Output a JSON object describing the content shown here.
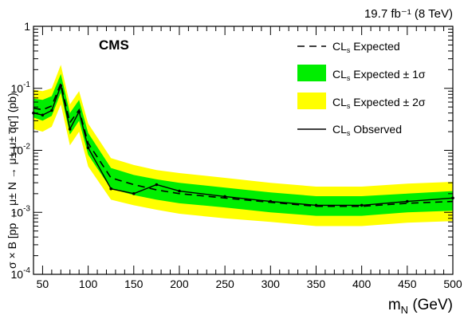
{
  "chart_data": {
    "type": "line",
    "header": "19.7 fb⁻¹ (8 TeV)",
    "experiment": "CMS",
    "xlabel": "m",
    "xlabel_sub": "N",
    "xlabel_unit": " (GeV)",
    "ylabel": "σ × B [pp → μ± N → μ± μ± q̅q′] (pb)",
    "xlim": [
      40,
      500
    ],
    "ylim": [
      0.0001,
      1
    ],
    "yscale": "log",
    "x_ticks": [
      "50",
      "100",
      "150",
      "200",
      "250",
      "300",
      "350",
      "400",
      "450",
      "500"
    ],
    "y_ticks": [
      {
        "base": "10",
        "exp": "-4"
      },
      {
        "base": "10",
        "exp": "-3"
      },
      {
        "base": "10",
        "exp": "-2"
      },
      {
        "base": "10",
        "exp": "-1"
      },
      {
        "base": "1",
        "exp": ""
      }
    ],
    "x": [
      40,
      50,
      60,
      70,
      80,
      90,
      100,
      125,
      150,
      175,
      200,
      250,
      300,
      350,
      400,
      450,
      500
    ],
    "series": [
      {
        "name": "CL",
        "name_sub": "s",
        "name_rest": " Expected",
        "style": "dashed",
        "values": [
          0.048,
          0.045,
          0.052,
          0.12,
          0.028,
          0.045,
          0.013,
          0.0036,
          0.0028,
          0.0023,
          0.002,
          0.0017,
          0.00145,
          0.00125,
          0.00125,
          0.0014,
          0.0015
        ]
      },
      {
        "name": "CL",
        "name_sub": "s",
        "name_rest": " Expected  ± 1σ",
        "style": "band",
        "color": "#00ee00",
        "lower": [
          0.034,
          0.03,
          0.036,
          0.085,
          0.018,
          0.03,
          0.0085,
          0.0024,
          0.0019,
          0.0016,
          0.0014,
          0.0012,
          0.001,
          0.00088,
          0.00088,
          0.001,
          0.00106
        ],
        "upper": [
          0.068,
          0.065,
          0.075,
          0.17,
          0.04,
          0.065,
          0.019,
          0.0052,
          0.004,
          0.0034,
          0.003,
          0.0025,
          0.0021,
          0.00182,
          0.00182,
          0.002,
          0.0022
        ]
      },
      {
        "name": "CL",
        "name_sub": "s",
        "name_rest": " Expected  ± 2σ",
        "style": "band",
        "color": "#ffff00",
        "lower": [
          0.022,
          0.02,
          0.024,
          0.055,
          0.012,
          0.02,
          0.0055,
          0.0016,
          0.0013,
          0.0011,
          0.00095,
          0.0008,
          0.0007,
          0.0006,
          0.0006,
          0.00068,
          0.00072
        ],
        "upper": [
          0.095,
          0.09,
          0.1,
          0.24,
          0.055,
          0.09,
          0.027,
          0.0075,
          0.0058,
          0.0048,
          0.0043,
          0.0036,
          0.003,
          0.0026,
          0.0026,
          0.0029,
          0.0031
        ]
      },
      {
        "name": "CL",
        "name_sub": "s",
        "name_rest": " Observed",
        "style": "solid",
        "values": [
          0.04,
          0.037,
          0.044,
          0.11,
          0.022,
          0.042,
          0.011,
          0.0024,
          0.002,
          0.0028,
          0.0022,
          0.0018,
          0.0015,
          0.0013,
          0.0013,
          0.0015,
          0.0017
        ]
      }
    ],
    "legend_position": "top-right",
    "grid": false
  }
}
